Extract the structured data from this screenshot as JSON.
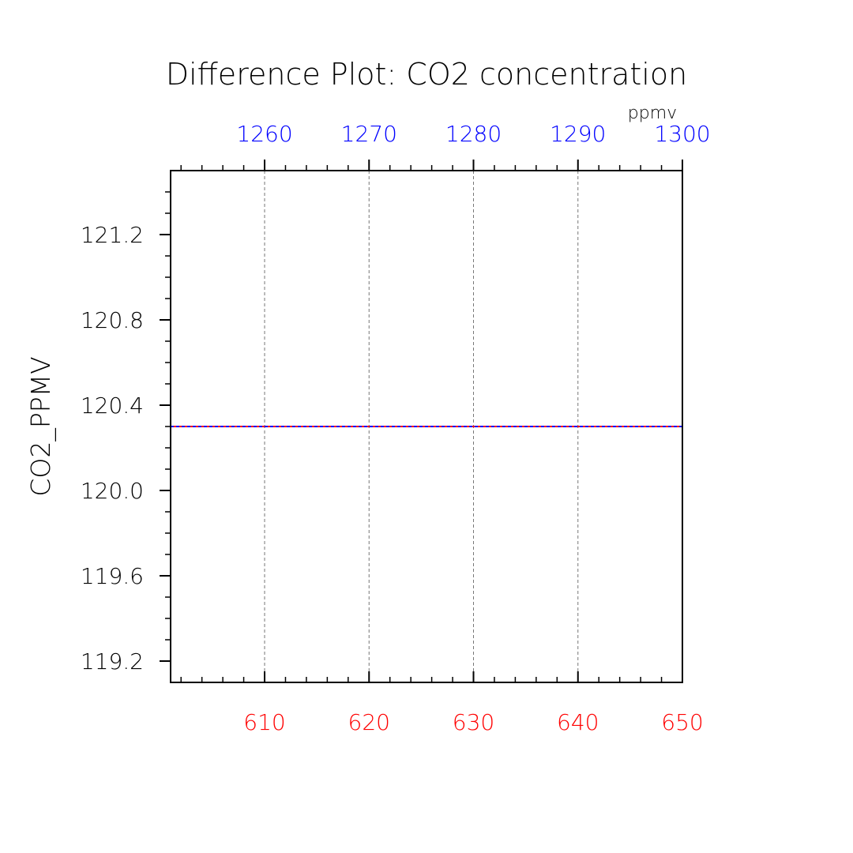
{
  "chart_data": {
    "type": "line",
    "title": "Difference Plot: CO2 concentration",
    "ylabel": "CO2_PPMV",
    "top_axis_unit": "ppmv",
    "ylim": [
      119.1,
      121.5
    ],
    "yticks": [
      "119.2",
      "119.6",
      "120.0",
      "120.4",
      "120.8",
      "121.2"
    ],
    "bottom_axis": {
      "range": [
        601,
        650
      ],
      "ticks": [
        "610",
        "620",
        "630",
        "640",
        "650"
      ],
      "color": "#ff0000"
    },
    "top_axis": {
      "range": [
        1251,
        1300
      ],
      "ticks": [
        "1260",
        "1270",
        "1280",
        "1290",
        "1300"
      ],
      "color": "#0000ff"
    },
    "series": [
      {
        "x": [
          601,
          650
        ],
        "values": [
          120.3,
          120.3
        ],
        "color": "#ff0000",
        "axis": "bottom"
      },
      {
        "x": [
          1251,
          1300
        ],
        "values": [
          120.3,
          120.3
        ],
        "color": "#0000ff",
        "axis": "top",
        "dashed": true
      }
    ],
    "grid": {
      "vertical": true,
      "horizontal": false,
      "style": "dashed"
    }
  }
}
